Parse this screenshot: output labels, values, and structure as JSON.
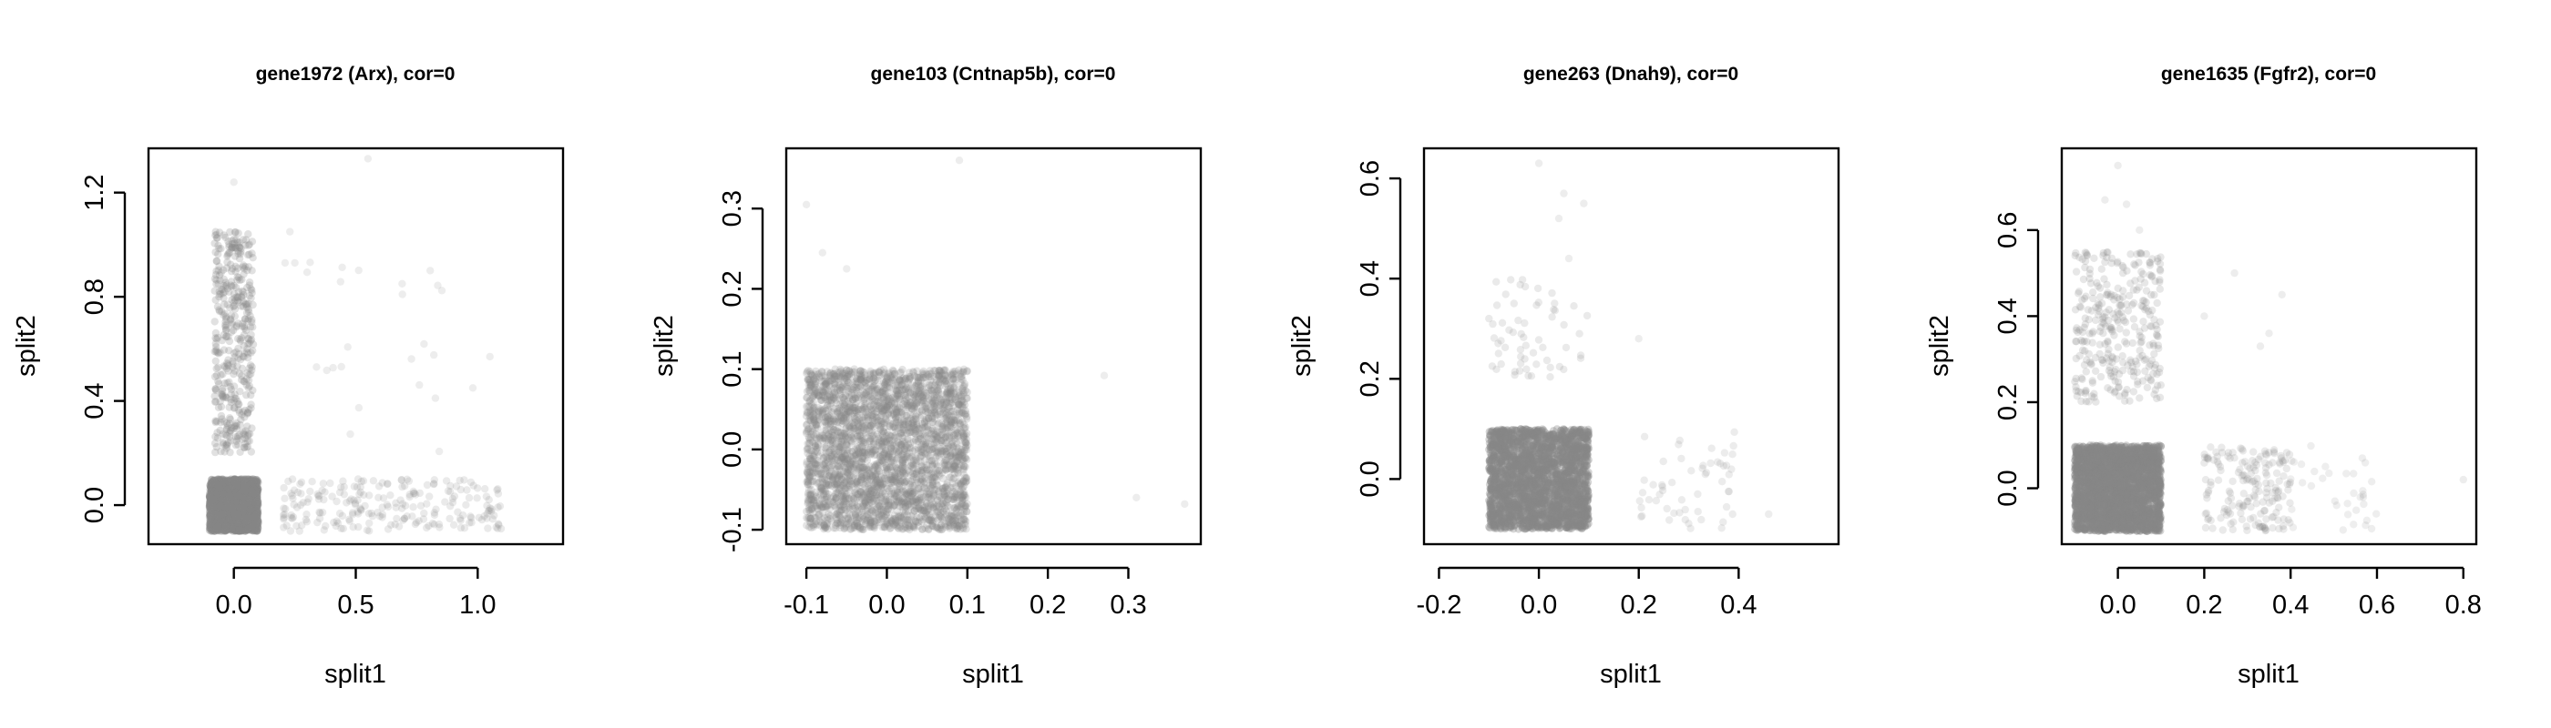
{
  "chart_data": [
    {
      "type": "scatter",
      "title": "gene1972 (Arx), cor=0",
      "xlabel": "split1",
      "ylabel": "split2",
      "xlim": [
        -0.35,
        1.35
      ],
      "ylim": [
        -0.15,
        1.37
      ],
      "xticks": [
        0.0,
        0.5,
        1.0
      ],
      "xtick_labels": [
        "0.0",
        "0.5",
        "1.0"
      ],
      "yticks": [
        0.0,
        0.4,
        0.8,
        1.2
      ],
      "ytick_labels": [
        "0.0",
        "0.4",
        "0.8",
        "1.2"
      ],
      "point_color": "#888888",
      "clusters": [
        {
          "x_range": [
            -0.1,
            0.1
          ],
          "y_range": [
            -0.1,
            0.1
          ],
          "count": 2200,
          "alpha": 0.35
        },
        {
          "x_range": [
            -0.08,
            0.08
          ],
          "y_range": [
            0.2,
            1.05
          ],
          "count": 420,
          "alpha": 0.25
        },
        {
          "x_range": [
            0.2,
            1.1
          ],
          "y_range": [
            -0.1,
            0.1
          ],
          "count": 230,
          "alpha": 0.18
        },
        {
          "x_range": [
            0.2,
            0.9
          ],
          "y_range": [
            0.15,
            0.95
          ],
          "count": 22,
          "alpha": 0.15
        }
      ],
      "points": [
        [
          0.0,
          1.24
        ],
        [
          0.55,
          1.33
        ],
        [
          0.23,
          1.05
        ],
        [
          0.69,
          0.85
        ],
        [
          1.05,
          0.57
        ],
        [
          0.98,
          0.45
        ],
        [
          0.25,
          0.93
        ],
        [
          0.21,
          0.93
        ]
      ]
    },
    {
      "type": "scatter",
      "title": "gene103 (Cntnap5b), cor=0",
      "xlabel": "split1",
      "ylabel": "split2",
      "xlim": [
        -0.125,
        0.39
      ],
      "ylim": [
        -0.118,
        0.375
      ],
      "xticks": [
        -0.1,
        0.0,
        0.1,
        0.2,
        0.3
      ],
      "xtick_labels": [
        "-0.1",
        "0.0",
        "0.1",
        "0.2",
        "0.3"
      ],
      "yticks": [
        -0.1,
        0.0,
        0.1,
        0.2,
        0.3
      ],
      "ytick_labels": [
        "-0.1",
        "0.0",
        "0.1",
        "0.2",
        "0.3"
      ],
      "point_color": "#888888",
      "clusters": [
        {
          "x_range": [
            -0.1,
            0.1
          ],
          "y_range": [
            -0.1,
            0.1
          ],
          "count": 3200,
          "alpha": 0.22
        }
      ],
      "points": [
        [
          -0.1,
          0.305
        ],
        [
          -0.08,
          0.245
        ],
        [
          -0.05,
          0.225
        ],
        [
          0.09,
          0.36
        ],
        [
          0.27,
          0.092
        ],
        [
          0.31,
          -0.06
        ],
        [
          0.37,
          -0.068
        ]
      ]
    },
    {
      "type": "scatter",
      "title": "gene263 (Dnah9), cor=0",
      "xlabel": "split1",
      "ylabel": "split2",
      "xlim": [
        -0.23,
        0.6
      ],
      "ylim": [
        -0.13,
        0.66
      ],
      "xticks": [
        -0.2,
        0.0,
        0.2,
        0.4
      ],
      "xtick_labels": [
        "-0.2",
        "0.0",
        "0.2",
        "0.4"
      ],
      "yticks": [
        0.0,
        0.2,
        0.4,
        0.6
      ],
      "ytick_labels": [
        "0.0",
        "0.2",
        "0.4",
        "0.6"
      ],
      "point_color": "#888888",
      "clusters": [
        {
          "x_range": [
            -0.1,
            0.1
          ],
          "y_range": [
            -0.1,
            0.1
          ],
          "count": 2400,
          "alpha": 0.35
        },
        {
          "x_range": [
            -0.1,
            0.1
          ],
          "y_range": [
            0.2,
            0.4
          ],
          "count": 60,
          "alpha": 0.18
        },
        {
          "x_range": [
            0.2,
            0.4
          ],
          "y_range": [
            -0.1,
            0.1
          ],
          "count": 55,
          "alpha": 0.16
        }
      ],
      "points": [
        [
          0.0,
          0.63
        ],
        [
          0.05,
          0.57
        ],
        [
          0.09,
          0.55
        ],
        [
          0.04,
          0.52
        ],
        [
          0.06,
          0.44
        ],
        [
          0.2,
          0.28
        ],
        [
          0.46,
          -0.07
        ]
      ]
    },
    {
      "type": "scatter",
      "title": "gene1635 (Fgfr2), cor=0",
      "xlabel": "split1",
      "ylabel": "split2",
      "xlim": [
        -0.13,
        0.83
      ],
      "ylim": [
        -0.13,
        0.79
      ],
      "xticks": [
        0.0,
        0.2,
        0.4,
        0.6,
        0.8
      ],
      "xtick_labels": [
        "0.0",
        "0.2",
        "0.4",
        "0.6",
        "0.8"
      ],
      "yticks": [
        0.0,
        0.2,
        0.4,
        0.6
      ],
      "ytick_labels": [
        "0.0",
        "0.2",
        "0.4",
        "0.6"
      ],
      "point_color": "#888888",
      "clusters": [
        {
          "x_range": [
            -0.1,
            0.1
          ],
          "y_range": [
            -0.1,
            0.1
          ],
          "count": 2600,
          "alpha": 0.35
        },
        {
          "x_range": [
            -0.1,
            0.1
          ],
          "y_range": [
            0.2,
            0.55
          ],
          "count": 320,
          "alpha": 0.2
        },
        {
          "x_range": [
            0.2,
            0.4
          ],
          "y_range": [
            -0.1,
            0.1
          ],
          "count": 180,
          "alpha": 0.18
        },
        {
          "x_range": [
            0.4,
            0.6
          ],
          "y_range": [
            -0.1,
            0.1
          ],
          "count": 35,
          "alpha": 0.14
        }
      ],
      "points": [
        [
          0.0,
          0.75
        ],
        [
          0.02,
          0.66
        ],
        [
          -0.03,
          0.67
        ],
        [
          0.05,
          0.6
        ],
        [
          0.27,
          0.5
        ],
        [
          0.38,
          0.45
        ],
        [
          0.35,
          0.36
        ],
        [
          0.33,
          0.33
        ],
        [
          0.8,
          0.02
        ],
        [
          0.2,
          0.4
        ]
      ]
    }
  ]
}
